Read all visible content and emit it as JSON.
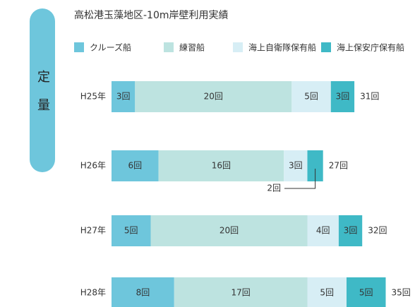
{
  "chart_data": {
    "type": "stacked-bar-horizontal",
    "title": "高松港玉藻地区-10m岸壁利用実績",
    "side_label": "定量",
    "categories": [
      "H25年",
      "H26年",
      "H27年",
      "H28年"
    ],
    "series": [
      {
        "name": "クルーズ船",
        "color": "#6ec6dc",
        "values": [
          3,
          6,
          5,
          8
        ],
        "value_labels": [
          "3回",
          "6回",
          "5回",
          "8回"
        ]
      },
      {
        "name": "練習船",
        "color": "#bde3e0",
        "values": [
          20,
          16,
          20,
          17
        ],
        "value_labels": [
          "20回",
          "16回",
          "20回",
          "17回"
        ]
      },
      {
        "name": "海上自衛隊保有船",
        "color": "#d7eef5",
        "values": [
          5,
          3,
          4,
          5
        ],
        "value_labels": [
          "5回",
          "3回",
          "4回",
          "5回"
        ]
      },
      {
        "name": "海上保安庁保有船",
        "color": "#3fb9c6",
        "values": [
          3,
          2,
          3,
          5
        ],
        "value_labels": [
          "3回",
          "2回",
          "3回",
          "5回"
        ]
      }
    ],
    "totals": [
      31,
      27,
      32,
      35
    ],
    "total_labels": [
      "31回",
      "27回",
      "32回",
      "35回"
    ]
  }
}
